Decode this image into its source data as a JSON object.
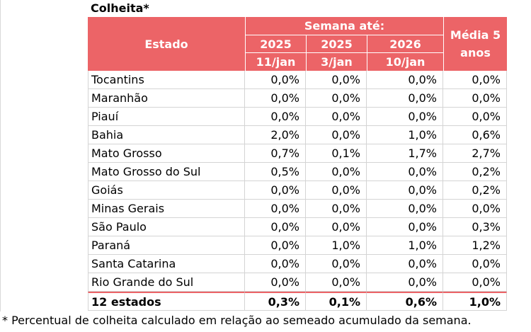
{
  "title": "Colheita*",
  "header": {
    "estado": "Estado",
    "semana": "Semana até:",
    "media": "Média 5 anos",
    "years": [
      "2025",
      "2025",
      "2026"
    ],
    "dates": [
      "11/jan",
      "3/jan",
      "10/jan"
    ]
  },
  "rows": [
    {
      "estado": "Tocantins",
      "v": [
        "0,0%",
        "0,0%",
        "0,0%",
        "0,0%"
      ]
    },
    {
      "estado": "Maranhão",
      "v": [
        "0,0%",
        "0,0%",
        "0,0%",
        "0,0%"
      ]
    },
    {
      "estado": "Piauí",
      "v": [
        "0,0%",
        "0,0%",
        "0,0%",
        "0,0%"
      ]
    },
    {
      "estado": "Bahia",
      "v": [
        "2,0%",
        "0,0%",
        "1,0%",
        "0,6%"
      ]
    },
    {
      "estado": "Mato Grosso",
      "v": [
        "0,7%",
        "0,1%",
        "1,7%",
        "2,7%"
      ]
    },
    {
      "estado": "Mato Grosso do Sul",
      "v": [
        "0,5%",
        "0,0%",
        "0,0%",
        "0,2%"
      ]
    },
    {
      "estado": "Goiás",
      "v": [
        "0,0%",
        "0,0%",
        "0,0%",
        "0,2%"
      ]
    },
    {
      "estado": "Minas Gerais",
      "v": [
        "0,0%",
        "0,0%",
        "0,0%",
        "0,0%"
      ]
    },
    {
      "estado": "São Paulo",
      "v": [
        "0,0%",
        "0,0%",
        "0,0%",
        "0,3%"
      ]
    },
    {
      "estado": "Paraná",
      "v": [
        "0,0%",
        "1,0%",
        "1,0%",
        "1,2%"
      ]
    },
    {
      "estado": "Santa Catarina",
      "v": [
        "0,0%",
        "0,0%",
        "0,0%",
        "0,0%"
      ]
    },
    {
      "estado": "Rio Grande do Sul",
      "v": [
        "0,0%",
        "0,0%",
        "0,0%",
        "0,0%"
      ]
    }
  ],
  "total": {
    "estado": "12 estados",
    "v": [
      "0,3%",
      "0,1%",
      "0,6%",
      "1,0%"
    ]
  },
  "footnote": "* Percentual de colheita calculado em relação ao semeado acumulado da semana.",
  "colors": {
    "header_bg": "#ec6467",
    "header_text": "#ffffff",
    "grid_line": "#d4d4d4"
  }
}
